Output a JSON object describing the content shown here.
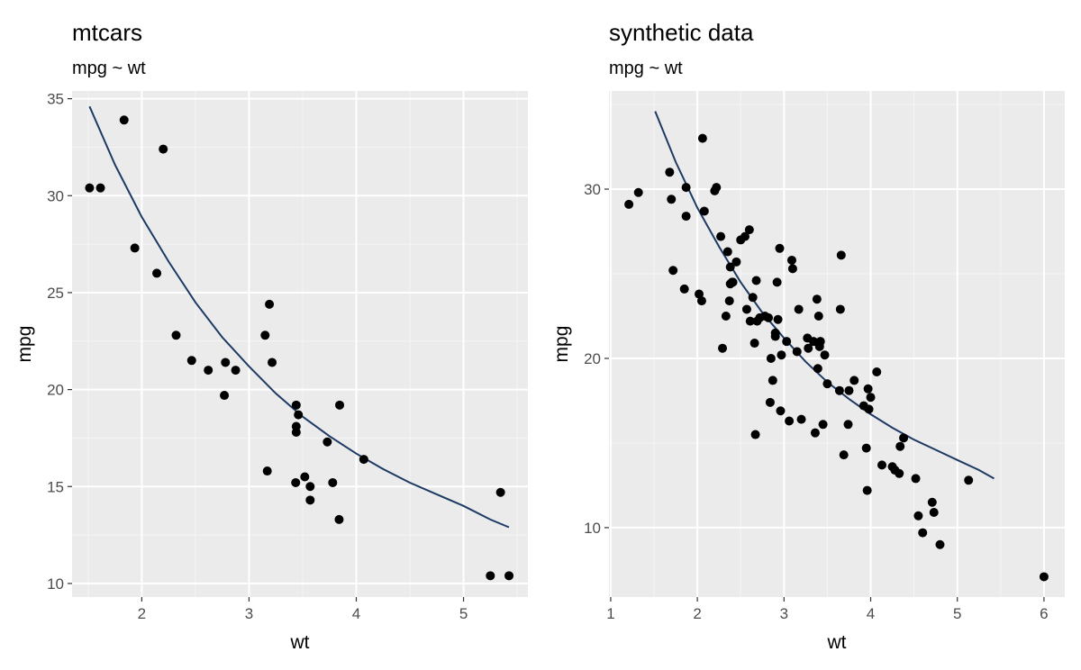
{
  "colors": {
    "panel_bg": "#ebebeb",
    "grid_major": "#ffffff",
    "grid_minor": "#f5f5f5",
    "point": "#000000",
    "curve": "#1c3a63",
    "tick_text": "#4d4d4d"
  },
  "chart_data": [
    {
      "type": "scatter",
      "title": "mtcars",
      "subtitle": "mpg ~ wt",
      "xlabel": "wt",
      "ylabel": "mpg",
      "xlim": [
        1.35,
        5.6
      ],
      "ylim": [
        9.3,
        35.4
      ],
      "x_ticks": [
        2,
        3,
        4,
        5
      ],
      "x_tick_labels": [
        "2",
        "3",
        "4",
        "5"
      ],
      "y_ticks": [
        10,
        15,
        20,
        25,
        30,
        35
      ],
      "y_tick_labels": [
        "10",
        "15",
        "20",
        "25",
        "30",
        "35"
      ],
      "grid": true,
      "points": {
        "x": [
          1.513,
          1.615,
          1.835,
          1.935,
          2.14,
          2.2,
          2.32,
          2.465,
          2.62,
          2.77,
          2.78,
          2.875,
          3.15,
          3.17,
          3.19,
          3.215,
          3.435,
          3.44,
          3.44,
          3.44,
          3.46,
          3.52,
          3.57,
          3.57,
          3.73,
          3.78,
          3.84,
          3.845,
          4.07,
          5.25,
          5.345,
          5.424
        ],
        "y": [
          30.4,
          30.4,
          33.9,
          27.3,
          26.0,
          32.4,
          22.8,
          21.5,
          21.0,
          19.7,
          21.4,
          21.0,
          22.8,
          15.8,
          24.4,
          21.4,
          15.2,
          17.8,
          18.1,
          19.2,
          18.7,
          15.5,
          15.0,
          14.3,
          17.3,
          15.2,
          13.3,
          19.2,
          16.4,
          10.4,
          14.7,
          10.4
        ]
      },
      "fit_curve": {
        "x": [
          1.513,
          1.75,
          2.0,
          2.25,
          2.5,
          2.75,
          3.0,
          3.25,
          3.5,
          3.75,
          4.0,
          4.25,
          4.5,
          4.75,
          5.0,
          5.25,
          5.424
        ],
        "y": [
          34.6,
          31.6,
          28.9,
          26.6,
          24.5,
          22.7,
          21.2,
          19.8,
          18.6,
          17.6,
          16.7,
          15.9,
          15.2,
          14.6,
          14.0,
          13.3,
          12.9
        ]
      }
    },
    {
      "type": "scatter",
      "title": "synthetic data",
      "subtitle": "mpg ~ wt",
      "xlabel": "wt",
      "ylabel": "mpg",
      "xlim": [
        0.98,
        6.24
      ],
      "ylim": [
        5.9,
        35.8
      ],
      "x_ticks": [
        1,
        2,
        3,
        4,
        5,
        6
      ],
      "x_tick_labels": [
        "1",
        "2",
        "3",
        "4",
        "5",
        "6"
      ],
      "y_ticks": [
        10,
        20,
        30
      ],
      "y_tick_labels": [
        "10",
        "20",
        "30"
      ],
      "grid": true,
      "points": {
        "x": [
          1.21,
          1.32,
          1.68,
          1.7,
          1.72,
          1.85,
          1.87,
          1.87,
          2.02,
          2.05,
          2.06,
          2.08,
          2.2,
          2.22,
          2.27,
          2.29,
          2.33,
          2.35,
          2.37,
          2.38,
          2.38,
          2.4,
          2.41,
          2.45,
          2.5,
          2.55,
          2.57,
          2.6,
          2.61,
          2.64,
          2.66,
          2.67,
          2.68,
          2.69,
          2.72,
          2.78,
          2.82,
          2.84,
          2.85,
          2.87,
          2.9,
          2.9,
          2.92,
          2.93,
          2.95,
          2.96,
          2.97,
          3.03,
          3.06,
          3.09,
          3.1,
          3.15,
          3.17,
          3.2,
          3.27,
          3.28,
          3.34,
          3.36,
          3.38,
          3.39,
          3.4,
          3.41,
          3.42,
          3.45,
          3.47,
          3.5,
          3.64,
          3.65,
          3.66,
          3.69,
          3.74,
          3.75,
          3.81,
          3.92,
          3.95,
          3.96,
          3.97,
          3.98,
          4.0,
          4.07,
          4.13,
          4.25,
          4.28,
          4.33,
          4.34,
          4.38,
          4.52,
          4.55,
          4.6,
          4.71,
          4.73,
          4.8,
          5.13,
          6.0
        ],
        "y": [
          29.1,
          29.8,
          31.0,
          29.4,
          25.2,
          24.1,
          30.1,
          28.4,
          23.8,
          23.4,
          33.0,
          28.7,
          29.9,
          30.1,
          27.2,
          20.6,
          22.5,
          26.3,
          23.4,
          24.4,
          25.4,
          24.5,
          24.5,
          25.7,
          27.0,
          27.2,
          22.9,
          27.6,
          22.2,
          23.6,
          20.9,
          15.5,
          24.6,
          22.2,
          22.4,
          22.5,
          22.4,
          17.4,
          20.0,
          18.7,
          21.5,
          21.3,
          24.5,
          22.3,
          26.5,
          16.9,
          20.2,
          21.0,
          16.3,
          25.8,
          25.3,
          20.4,
          22.9,
          16.4,
          21.2,
          20.6,
          21.0,
          15.6,
          23.5,
          19.4,
          22.5,
          20.7,
          21.0,
          16.1,
          20.2,
          18.5,
          18.1,
          22.9,
          26.1,
          14.3,
          16.1,
          18.1,
          18.7,
          17.2,
          14.7,
          12.2,
          18.2,
          17.0,
          17.7,
          19.2,
          13.7,
          13.6,
          13.4,
          13.2,
          14.8,
          15.3,
          12.9,
          10.7,
          9.7,
          11.5,
          10.9,
          9.0,
          12.8,
          7.1
        ]
      },
      "fit_curve": {
        "x": [
          1.513,
          1.75,
          2.0,
          2.25,
          2.5,
          2.75,
          3.0,
          3.25,
          3.5,
          3.75,
          4.0,
          4.25,
          4.5,
          4.75,
          5.0,
          5.25,
          5.424
        ],
        "y": [
          34.6,
          31.6,
          28.9,
          26.6,
          24.5,
          22.7,
          21.2,
          19.8,
          18.6,
          17.6,
          16.7,
          15.9,
          15.2,
          14.6,
          14.0,
          13.4,
          12.9
        ]
      }
    }
  ]
}
